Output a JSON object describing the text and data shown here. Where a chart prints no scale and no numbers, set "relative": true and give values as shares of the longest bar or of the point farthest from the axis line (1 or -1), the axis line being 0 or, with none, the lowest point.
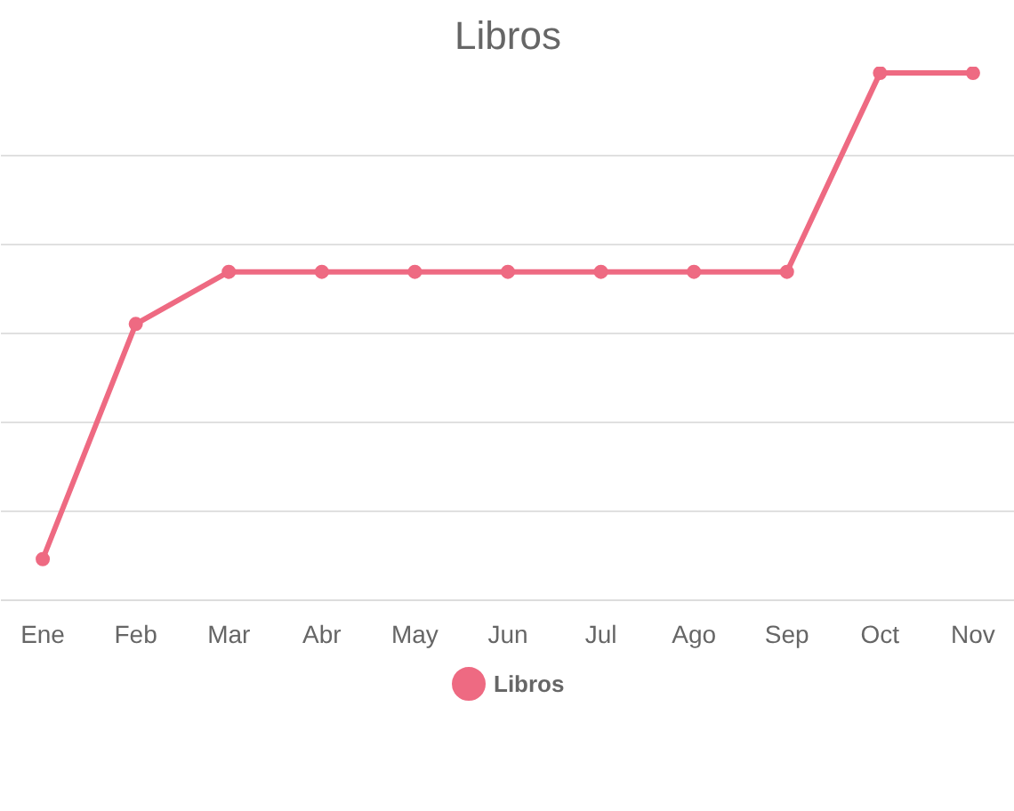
{
  "chart_data": {
    "type": "line",
    "title": "Libros",
    "relative": true,
    "categories": [
      "Ene",
      "Feb",
      "Mar",
      "Abr",
      "May",
      "Jun",
      "Jul",
      "Ago",
      "Sep",
      "Oct",
      "Nov"
    ],
    "series": [
      {
        "name": "Libros",
        "color": "#ee6a82",
        "values": [
          0.078,
          0.524,
          0.623,
          0.623,
          0.623,
          0.623,
          0.623,
          0.623,
          0.623,
          1,
          1
        ]
      }
    ],
    "grid": "y",
    "legend": "bottom",
    "marker": "circle",
    "line_style": "solid"
  }
}
